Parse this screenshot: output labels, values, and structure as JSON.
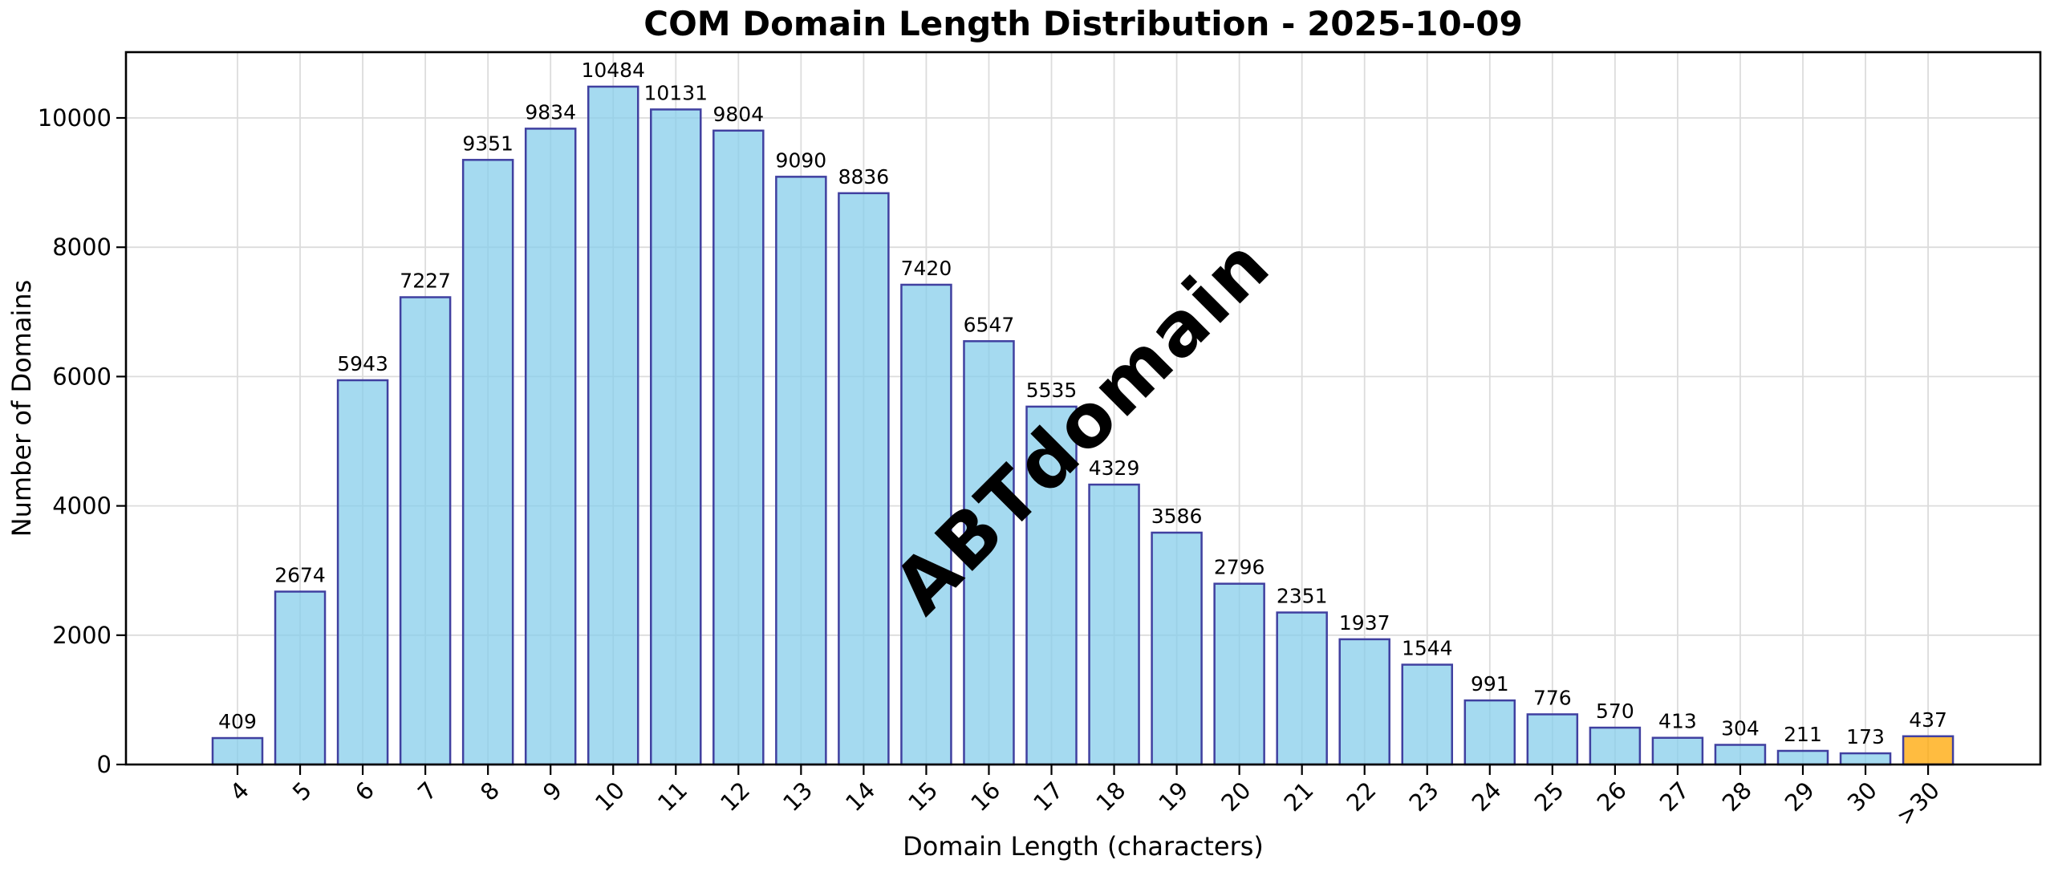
{
  "figure": {
    "title": "COM Domain Length Distribution - 2025-10-09",
    "watermark": "ABTdomain"
  },
  "chart_data": {
    "type": "bar",
    "title": "COM Domain Length Distribution - 2025-10-09",
    "xlabel": "Domain Length (characters)",
    "ylabel": "Number of Domains",
    "categories": [
      "4",
      "5",
      "6",
      "7",
      "8",
      "9",
      "10",
      "11",
      "12",
      "13",
      "14",
      "15",
      "16",
      "17",
      "18",
      "19",
      "20",
      "21",
      "22",
      "23",
      "24",
      "25",
      "26",
      "27",
      "28",
      "29",
      "30",
      ">30"
    ],
    "values": [
      409,
      2674,
      5943,
      7227,
      9351,
      9834,
      10484,
      10131,
      9804,
      9090,
      8836,
      7420,
      6547,
      5535,
      4329,
      3586,
      2796,
      2351,
      1937,
      1544,
      991,
      776,
      570,
      413,
      304,
      211,
      173,
      437
    ],
    "highlight_category": ">30",
    "yticks": [
      0,
      2000,
      4000,
      6000,
      8000,
      10000
    ],
    "ylim": [
      0,
      11050
    ],
    "grid": true,
    "legend": "none",
    "colors": {
      "bar_fill": "rgba(135,206,235,0.75)",
      "bar_fill_rendered": "#A5DAF0",
      "bar_edge": "#4040A0",
      "highlight_fill": "rgba(255,165,0,0.75)",
      "highlight_fill_rendered": "#FFBC40",
      "grid": "#dcdcdc",
      "watermark": "rgba(118,118,118,0.35)",
      "text": "#000000"
    }
  }
}
